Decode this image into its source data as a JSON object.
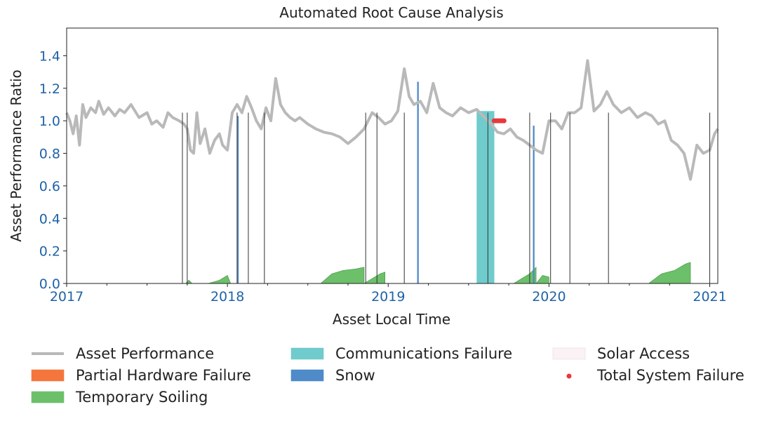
{
  "chart_data": {
    "type": "area",
    "title": "Automated Root Cause Analysis",
    "xlabel": "Asset Local Time",
    "ylabel": "Asset Performance Ratio",
    "xlim": [
      2017.0,
      2021.05
    ],
    "ylim": [
      0.0,
      1.57
    ],
    "x_ticks": [
      "2017",
      "2018",
      "2019",
      "2020",
      "2021"
    ],
    "y_ticks": [
      "0.0",
      "0.2",
      "0.4",
      "0.6",
      "0.8",
      "1.0",
      "1.2",
      "1.4"
    ],
    "grid": false,
    "legend_position": "bottom",
    "legend": [
      {
        "label": "Asset Performance",
        "kind": "line",
        "color": "#b9b9b9"
      },
      {
        "label": "Partial Hardware Failure",
        "kind": "area",
        "color": "#f4763d"
      },
      {
        "label": "Temporary Soiling",
        "kind": "area",
        "color": "#6cc06a"
      },
      {
        "label": "Communications Failure",
        "kind": "area",
        "color": "#6fcbcc"
      },
      {
        "label": "Snow",
        "kind": "area",
        "color": "#4f8ac9"
      },
      {
        "label": "Solar Access",
        "kind": "area",
        "color": "#fbf2f6"
      },
      {
        "label": "Total System Failure",
        "kind": "point",
        "color": "#e8383d"
      }
    ],
    "performance": {
      "x": [
        2017.0,
        2017.02,
        2017.04,
        2017.06,
        2017.08,
        2017.1,
        2017.12,
        2017.15,
        2017.18,
        2017.2,
        2017.23,
        2017.26,
        2017.3,
        2017.33,
        2017.36,
        2017.4,
        2017.45,
        2017.5,
        2017.53,
        2017.56,
        2017.6,
        2017.63,
        2017.66,
        2017.7,
        2017.73,
        2017.75,
        2017.77,
        2017.79,
        2017.81,
        2017.83,
        2017.86,
        2017.89,
        2017.92,
        2017.95,
        2017.97,
        2018.0,
        2018.03,
        2018.06,
        2018.09,
        2018.12,
        2018.15,
        2018.18,
        2018.21,
        2018.24,
        2018.27,
        2018.3,
        2018.33,
        2018.36,
        2018.39,
        2018.42,
        2018.45,
        2018.5,
        2018.55,
        2018.6,
        2018.65,
        2018.7,
        2018.75,
        2018.8,
        2018.85,
        2018.9,
        2018.94,
        2018.98,
        2019.02,
        2019.06,
        2019.1,
        2019.13,
        2019.16,
        2019.2,
        2019.24,
        2019.28,
        2019.32,
        2019.36,
        2019.4,
        2019.45,
        2019.5,
        2019.55,
        2019.6,
        2019.64,
        2019.68,
        2019.72,
        2019.76,
        2019.8,
        2019.84,
        2019.88,
        2019.92,
        2019.96,
        2020.0,
        2020.04,
        2020.08,
        2020.12,
        2020.16,
        2020.2,
        2020.24,
        2020.28,
        2020.32,
        2020.36,
        2020.4,
        2020.45,
        2020.5,
        2020.55,
        2020.6,
        2020.64,
        2020.68,
        2020.72,
        2020.76,
        2020.8,
        2020.84,
        2020.88,
        2020.92,
        2020.96,
        2021.0,
        2021.03,
        2021.05
      ],
      "y": [
        1.05,
        1.0,
        0.92,
        1.03,
        0.85,
        1.1,
        1.02,
        1.08,
        1.05,
        1.12,
        1.04,
        1.08,
        1.03,
        1.07,
        1.05,
        1.1,
        1.02,
        1.05,
        0.98,
        1.0,
        0.96,
        1.05,
        1.02,
        1.0,
        0.98,
        0.95,
        0.82,
        0.8,
        1.05,
        0.86,
        0.95,
        0.8,
        0.88,
        0.92,
        0.85,
        0.82,
        1.05,
        1.1,
        1.05,
        1.15,
        1.08,
        1.0,
        0.95,
        1.08,
        1.0,
        1.26,
        1.1,
        1.05,
        1.02,
        1.0,
        1.02,
        0.98,
        0.95,
        0.93,
        0.92,
        0.9,
        0.86,
        0.9,
        0.95,
        1.05,
        1.02,
        0.98,
        1.0,
        1.06,
        1.32,
        1.15,
        1.1,
        1.12,
        1.05,
        1.23,
        1.08,
        1.05,
        1.03,
        1.08,
        1.05,
        1.07,
        1.02,
        0.98,
        0.93,
        0.92,
        0.95,
        0.9,
        0.88,
        0.85,
        0.82,
        0.8,
        1.0,
        1.0,
        0.95,
        1.05,
        1.05,
        1.08,
        1.37,
        1.06,
        1.1,
        1.18,
        1.1,
        1.05,
        1.08,
        1.02,
        1.05,
        1.03,
        0.98,
        1.0,
        0.88,
        0.85,
        0.8,
        0.64,
        0.85,
        0.8,
        0.82,
        0.92,
        0.95
      ],
      "dropouts": [
        2017.72,
        2017.75,
        2018.06,
        2018.13,
        2018.23,
        2018.86,
        2018.93,
        2019.1,
        2019.62,
        2019.88,
        2020.01,
        2020.13,
        2020.37,
        2021.0
      ]
    },
    "temporary_soiling": [
      {
        "x": [
          2017.74,
          2017.76,
          2017.78
        ],
        "y": [
          0.0,
          0.02,
          0.0
        ]
      },
      {
        "x": [
          2017.88,
          2017.95,
          2018.0,
          2018.02
        ],
        "y": [
          0.0,
          0.02,
          0.05,
          0.0
        ]
      },
      {
        "x": [
          2018.58,
          2018.65,
          2018.72,
          2018.8,
          2018.85
        ],
        "y": [
          0.0,
          0.06,
          0.08,
          0.09,
          0.1
        ]
      },
      {
        "x": [
          2018.85,
          2018.9,
          2018.95,
          2018.98
        ],
        "y": [
          0.0,
          0.03,
          0.06,
          0.07
        ]
      },
      {
        "x": [
          2019.78,
          2019.83,
          2019.88,
          2019.92
        ],
        "y": [
          0.0,
          0.03,
          0.06,
          0.1
        ]
      },
      {
        "x": [
          2019.92,
          2019.96,
          2020.0
        ],
        "y": [
          0.0,
          0.05,
          0.04
        ]
      },
      {
        "x": [
          2020.62,
          2020.7,
          2020.78,
          2020.85,
          2020.88
        ],
        "y": [
          0.0,
          0.06,
          0.08,
          0.12,
          0.13
        ]
      }
    ],
    "communications_failure": [
      {
        "x_start": 2019.55,
        "x_end": 2019.66,
        "top": 1.06
      }
    ],
    "snow": [
      {
        "x_start": 2018.06,
        "x_end": 2018.07,
        "top": 1.03
      },
      {
        "x_start": 2019.18,
        "x_end": 2019.19,
        "top": 1.24
      },
      {
        "x_start": 2019.9,
        "x_end": 2019.91,
        "top": 0.97
      }
    ],
    "total_system_failure": {
      "x": [
        2019.66,
        2019.67,
        2019.68,
        2019.69,
        2019.7,
        2019.71,
        2019.72
      ],
      "y": [
        1.0,
        1.0,
        1.0,
        1.0,
        1.0,
        1.0,
        1.0
      ]
    }
  }
}
